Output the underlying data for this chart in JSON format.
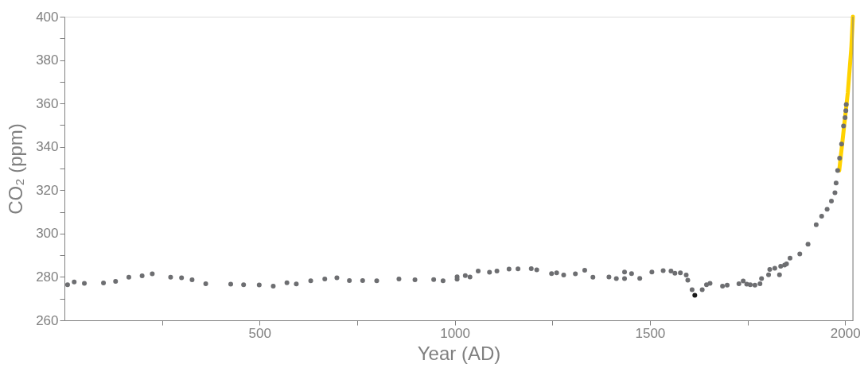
{
  "chart_data": {
    "type": "scatter",
    "xlabel": "Year (AD)",
    "ylabel": "CO₂  (ppm)",
    "xlim": [
      0,
      2020
    ],
    "ylim": [
      260,
      400
    ],
    "xticks": [
      {
        "value": 250,
        "label": null
      },
      500,
      {
        "value": 750,
        "label": null
      },
      1000,
      {
        "value": 1250,
        "label": null
      },
      1500,
      {
        "value": 1750,
        "label": null
      },
      2000
    ],
    "yticks": [
      260,
      {
        "value": 270,
        "label": null
      },
      280,
      {
        "value": 290,
        "label": null
      },
      300,
      {
        "value": 310,
        "label": null
      },
      320,
      {
        "value": 330,
        "label": null
      },
      340,
      {
        "value": 350,
        "label": null
      },
      360,
      {
        "value": 370,
        "label": null
      },
      380,
      {
        "value": 390,
        "label": null
      },
      400
    ],
    "grid": false,
    "series": [
      {
        "marker": "circle",
        "color": "#6d6e71",
        "x": [
          8,
          25,
          51,
          100,
          131,
          165,
          199,
          225,
          272,
          300,
          327,
          362,
          426,
          459,
          499,
          535,
          570,
          594,
          631,
          667,
          698,
          730,
          764,
          800,
          857,
          898,
          946,
          970,
          1006,
          1006,
          1027,
          1039,
          1060,
          1089,
          1108,
          1139,
          1162,
          1196,
          1210,
          1248,
          1261,
          1279,
          1309,
          1333,
          1354,
          1395,
          1414,
          1435,
          1435,
          1453,
          1474,
          1505,
          1534,
          1554,
          1564,
          1578,
          1593,
          1597,
          1608,
          1634,
          1645,
          1654,
          1686,
          1698,
          1728,
          1739,
          1748,
          1757,
          1769,
          1782,
          1786,
          1804,
          1807,
          1820,
          1832,
          1835,
          1845,
          1850,
          1859,
          1884,
          1905,
          1926,
          1940,
          1954,
          1965,
          1974,
          1977,
          1981,
          1986,
          1991,
          1996,
          2000,
          2002,
          2003
        ],
        "values": [
          276.4,
          277.7,
          277.0,
          277.2,
          278.0,
          279.9,
          280.5,
          281.4,
          279.9,
          279.6,
          278.7,
          276.9,
          276.7,
          276.4,
          276.3,
          275.8,
          277.3,
          276.8,
          278.2,
          279.1,
          279.6,
          278.3,
          278.3,
          278.2,
          279.1,
          278.7,
          278.8,
          278.2,
          280.1,
          279.0,
          280.6,
          280.0,
          282.7,
          282.2,
          282.7,
          283.6,
          283.7,
          283.8,
          283.3,
          281.5,
          281.9,
          280.9,
          281.4,
          283.1,
          279.9,
          280.0,
          279.2,
          282.3,
          279.2,
          281.5,
          279.3,
          282.3,
          282.9,
          282.7,
          281.7,
          281.9,
          280.9,
          278.5,
          274.1,
          274.1,
          276.4,
          277.0,
          275.8,
          276.2,
          276.9,
          278.1,
          276.7,
          276.4,
          276.2,
          276.9,
          279.2,
          281.0,
          283.5,
          284.0,
          281.0,
          284.9,
          285.5,
          286.0,
          288.7,
          290.6,
          295.1,
          304.1,
          308.0,
          311.2,
          315.0,
          318.8,
          323.3,
          329.1,
          334.8,
          341.3,
          349.6,
          353.5,
          356.7,
          359.5
        ]
      },
      {
        "marker": "circle",
        "color": "#1a1a1a",
        "x": [
          1615
        ],
        "values": [
          271.5
        ]
      },
      {
        "type": "line",
        "color": "#ffd200",
        "x": [
          1985,
          1996,
          2007,
          2016,
          2020
        ],
        "values": [
          329.1,
          347.0,
          365.0,
          385.5,
          400.0
        ]
      }
    ]
  }
}
